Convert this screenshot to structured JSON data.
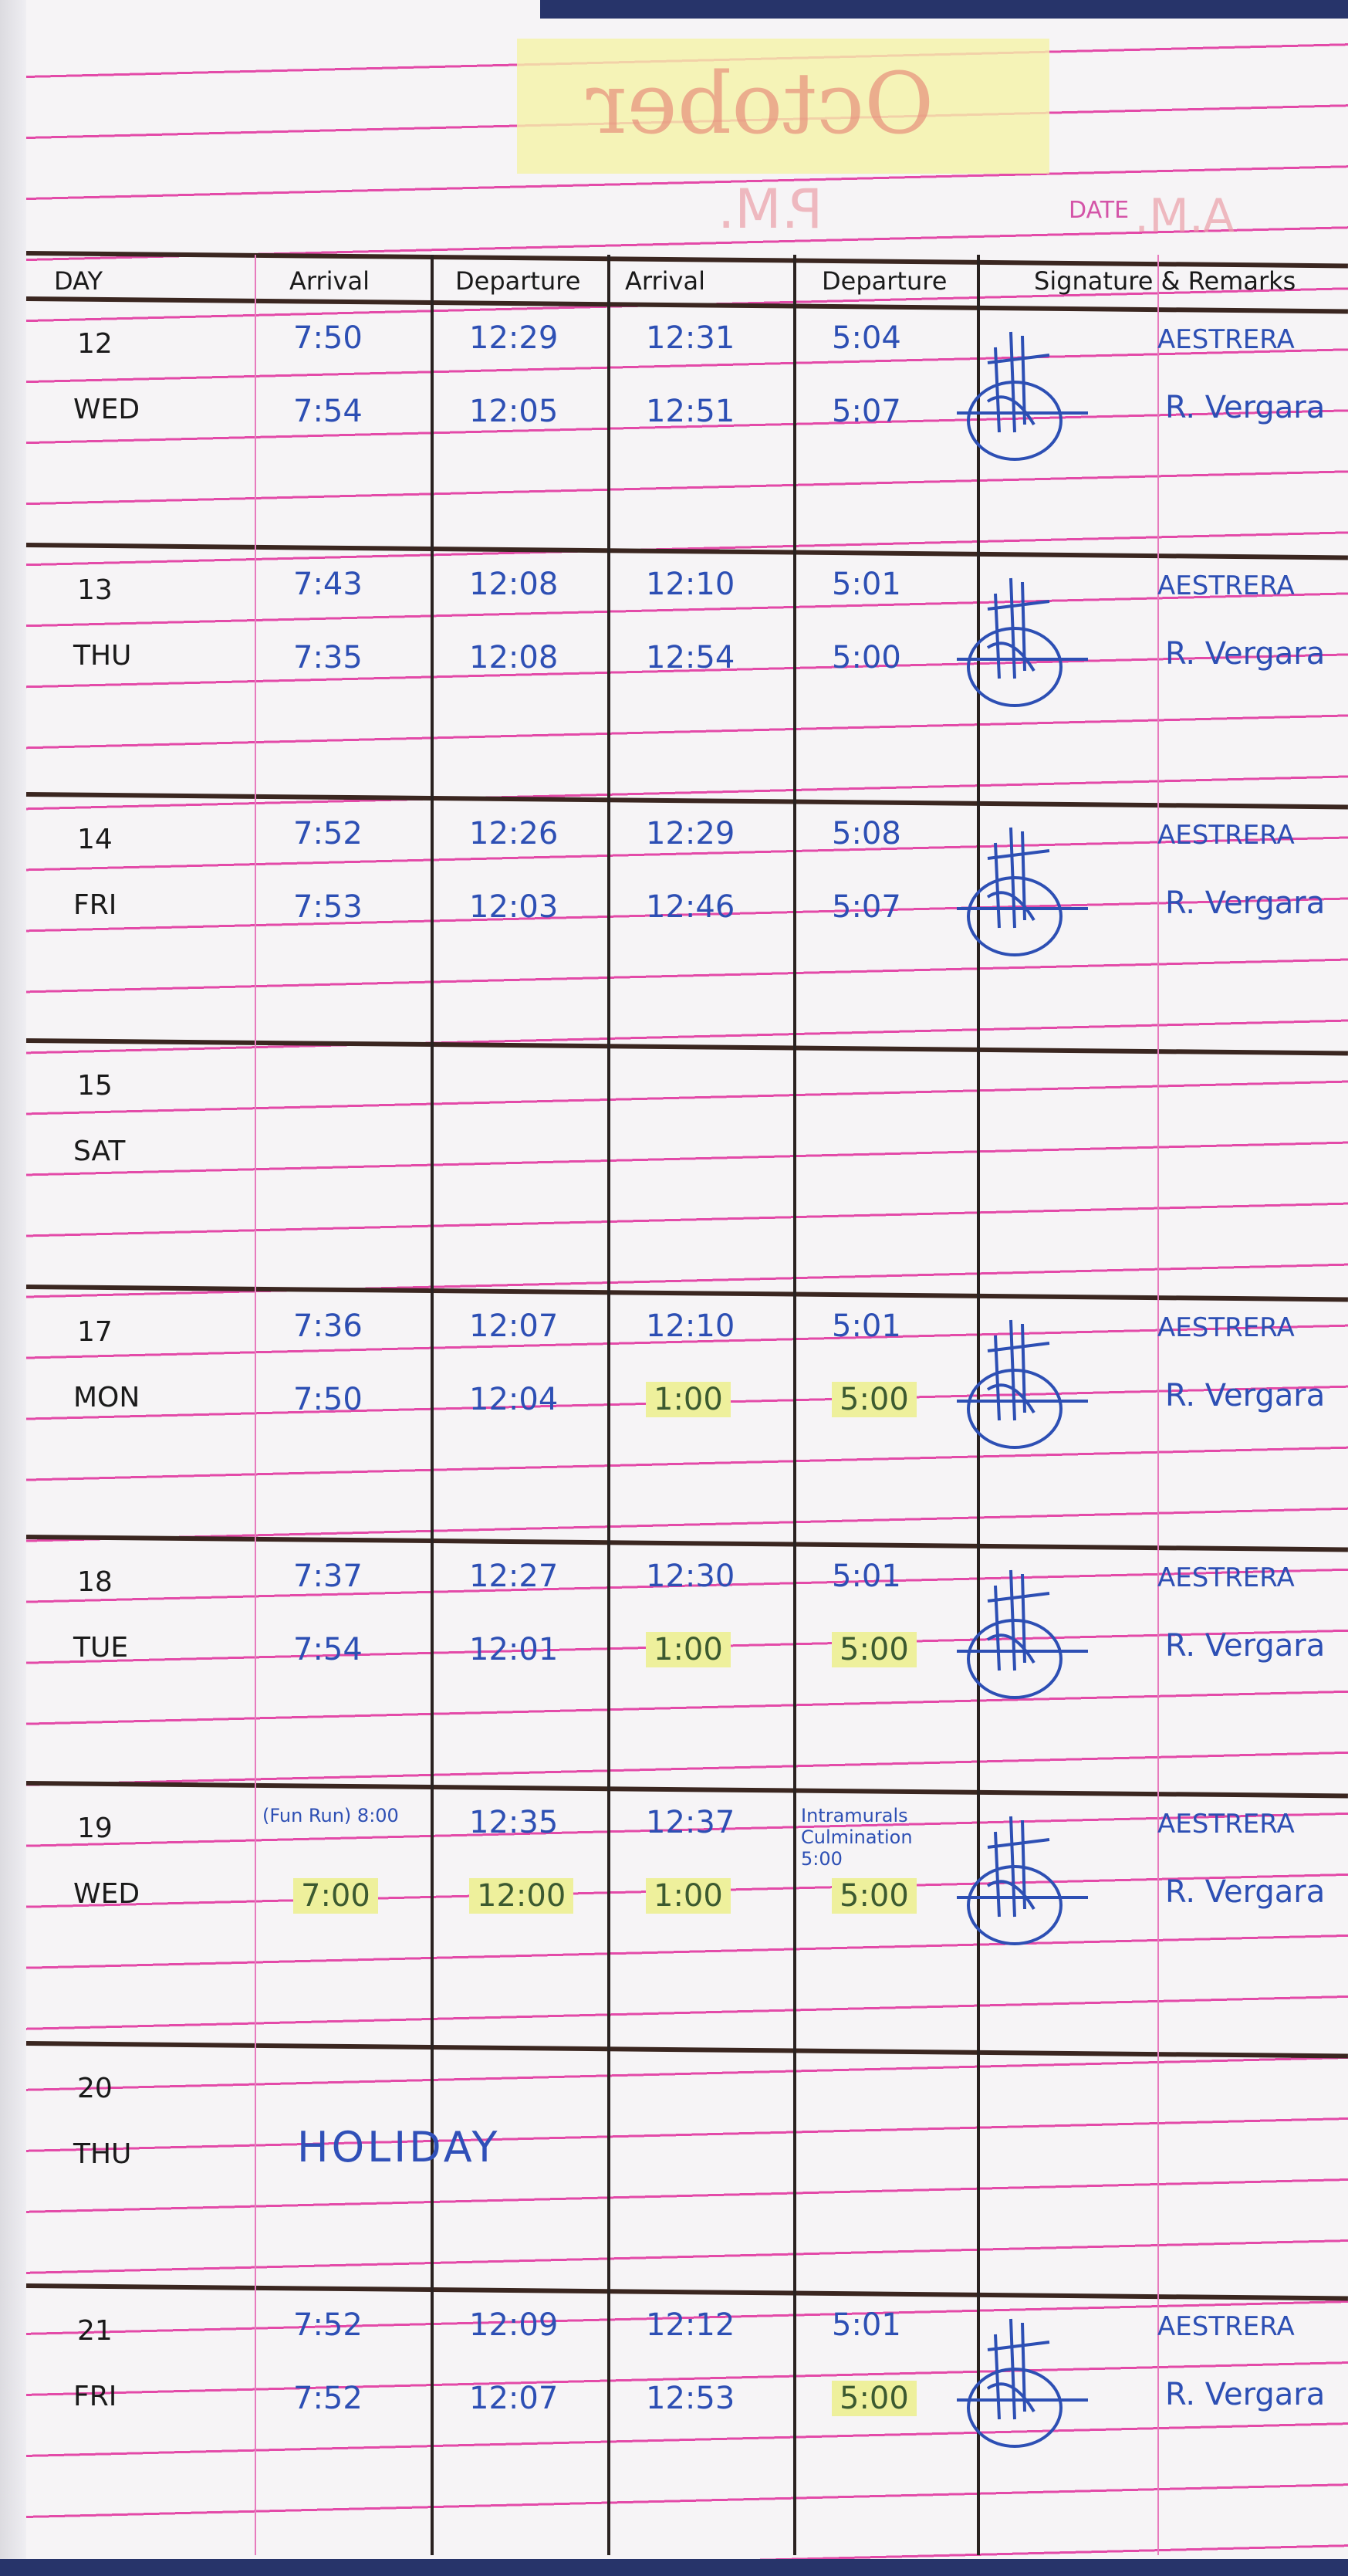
{
  "title": {
    "month": "October",
    "pm_stamp": "P.M.",
    "date_label": "DATE",
    "am_stamp": "A.M."
  },
  "headers": [
    "DAY",
    "Arrival",
    "Departure",
    "Arrival",
    "Departure",
    "Signature & Remarks"
  ],
  "rows": [
    {
      "day": "12",
      "weekday": "WED",
      "am_arrival": [
        "7:50",
        "7:54"
      ],
      "am_departure": [
        "12:29",
        "12:05"
      ],
      "pm_arrival": [
        "12:31",
        "12:51"
      ],
      "pm_departure": [
        "5:04",
        "5:07"
      ],
      "remarks": [
        "AESTRERA",
        "R. Vergara"
      ],
      "signed": true
    },
    {
      "day": "13",
      "weekday": "THU",
      "am_arrival": [
        "7:43",
        "7:35"
      ],
      "am_departure": [
        "12:08",
        "12:08"
      ],
      "pm_arrival": [
        "12:10",
        "12:54"
      ],
      "pm_departure": [
        "5:01",
        "5:00"
      ],
      "remarks": [
        "AESTRERA",
        "R. Vergara"
      ],
      "signed": true
    },
    {
      "day": "14",
      "weekday": "FRI",
      "am_arrival": [
        "7:52",
        "7:53"
      ],
      "am_departure": [
        "12:26",
        "12:03"
      ],
      "pm_arrival": [
        "12:29",
        "12:46"
      ],
      "pm_departure": [
        "5:08",
        "5:07"
      ],
      "remarks": [
        "AESTRERA",
        "R. Vergara"
      ],
      "signed": true
    },
    {
      "day": "15",
      "weekday": "SAT",
      "am_arrival": [
        "",
        ""
      ],
      "am_departure": [
        "",
        ""
      ],
      "pm_arrival": [
        "",
        ""
      ],
      "pm_departure": [
        "",
        ""
      ],
      "remarks": [
        "",
        ""
      ],
      "signed": false
    },
    {
      "day": "17",
      "weekday": "MON",
      "am_arrival": [
        "7:36",
        "7:50"
      ],
      "am_departure": [
        "12:07",
        "12:04"
      ],
      "pm_arrival": [
        "12:10",
        "1:00"
      ],
      "pm_departure": [
        "5:01",
        "5:00"
      ],
      "remarks": [
        "AESTRERA",
        "R. Vergara"
      ],
      "signed": true,
      "highlight": [
        "pm_arrival",
        "pm_departure"
      ]
    },
    {
      "day": "18",
      "weekday": "TUE",
      "am_arrival": [
        "7:37",
        "7:54"
      ],
      "am_departure": [
        "12:27",
        "12:01"
      ],
      "pm_arrival": [
        "12:30",
        "1:00"
      ],
      "pm_departure": [
        "5:01",
        "5:00"
      ],
      "remarks": [
        "AESTRERA",
        "R. Vergara"
      ],
      "signed": true,
      "highlight": [
        "pm_arrival",
        "pm_departure"
      ]
    },
    {
      "day": "19",
      "weekday": "WED",
      "am_arrival": [
        "(Fun Run) 8:00",
        "7:00"
      ],
      "am_arrival_note": "(Fun Run)",
      "am_departure": [
        "12:35",
        "12:00"
      ],
      "pm_arrival": [
        "12:37",
        "1:00"
      ],
      "pm_departure": [
        "Intramurals Culmination 5:00",
        "5:00"
      ],
      "remarks": [
        "AESTRERA",
        "R. Vergara"
      ],
      "signed": true,
      "highlight": [
        "am_arrival",
        "am_departure",
        "pm_arrival",
        "pm_departure"
      ]
    },
    {
      "day": "20",
      "weekday": "THU",
      "note": "HOLIDAY",
      "am_arrival": [
        "",
        ""
      ],
      "am_departure": [
        "",
        ""
      ],
      "pm_arrival": [
        "",
        ""
      ],
      "pm_departure": [
        "",
        ""
      ],
      "remarks": [
        "",
        ""
      ],
      "signed": false
    },
    {
      "day": "21",
      "weekday": "FRI",
      "am_arrival": [
        "7:52",
        "7:52"
      ],
      "am_departure": [
        "12:09",
        "12:07"
      ],
      "pm_arrival": [
        "12:12",
        "12:53"
      ],
      "pm_departure": [
        "5:01",
        "5:00"
      ],
      "remarks": [
        "AESTRERA",
        "R. Vergara"
      ],
      "signed": true,
      "highlight": [
        "pm_departure"
      ]
    }
  ],
  "colors": {
    "ink_blue": "#2d4fb4",
    "ink_black": "#1a1a1a",
    "rule_pink": "#e34aa8",
    "highlighter": "#eef09c"
  }
}
